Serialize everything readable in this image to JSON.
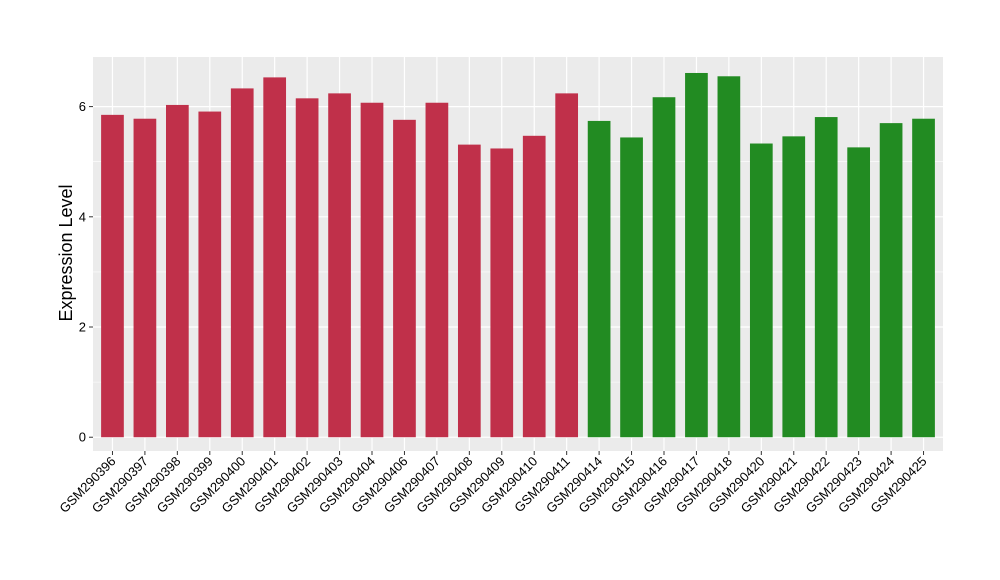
{
  "chart_data": {
    "type": "bar",
    "title": "",
    "xlabel": "",
    "ylabel": "Expression Level",
    "ylim": [
      -0.25,
      6.9
    ],
    "yticks": [
      0,
      2,
      4,
      6
    ],
    "grid": true,
    "legend": "none",
    "categories": [
      "GSM290396",
      "GSM290397",
      "GSM290398",
      "GSM290399",
      "GSM290400",
      "GSM290401",
      "GSM290402",
      "GSM290403",
      "GSM290404",
      "GSM290406",
      "GSM290407",
      "GSM290408",
      "GSM290409",
      "GSM290410",
      "GSM290411",
      "GSM290414",
      "GSM290415",
      "GSM290416",
      "GSM290417",
      "GSM290418",
      "GSM290420",
      "GSM290421",
      "GSM290422",
      "GSM290423",
      "GSM290424",
      "GSM290425"
    ],
    "values": [
      5.85,
      5.78,
      6.03,
      5.91,
      6.33,
      6.53,
      6.15,
      6.24,
      6.07,
      5.76,
      6.07,
      5.31,
      5.24,
      5.47,
      6.24,
      5.74,
      5.44,
      6.17,
      6.61,
      6.55,
      5.33,
      5.46,
      5.81,
      5.26,
      5.7,
      5.78
    ],
    "groups": [
      "A",
      "A",
      "A",
      "A",
      "A",
      "A",
      "A",
      "A",
      "A",
      "A",
      "A",
      "A",
      "A",
      "A",
      "A",
      "B",
      "B",
      "B",
      "B",
      "B",
      "B",
      "B",
      "B",
      "B",
      "B",
      "B"
    ],
    "colors": {
      "A": "#c0304a",
      "B": "#228b22",
      "panel": "#ebebeb",
      "grid_major": "#ffffff",
      "tick": "#333333"
    }
  }
}
